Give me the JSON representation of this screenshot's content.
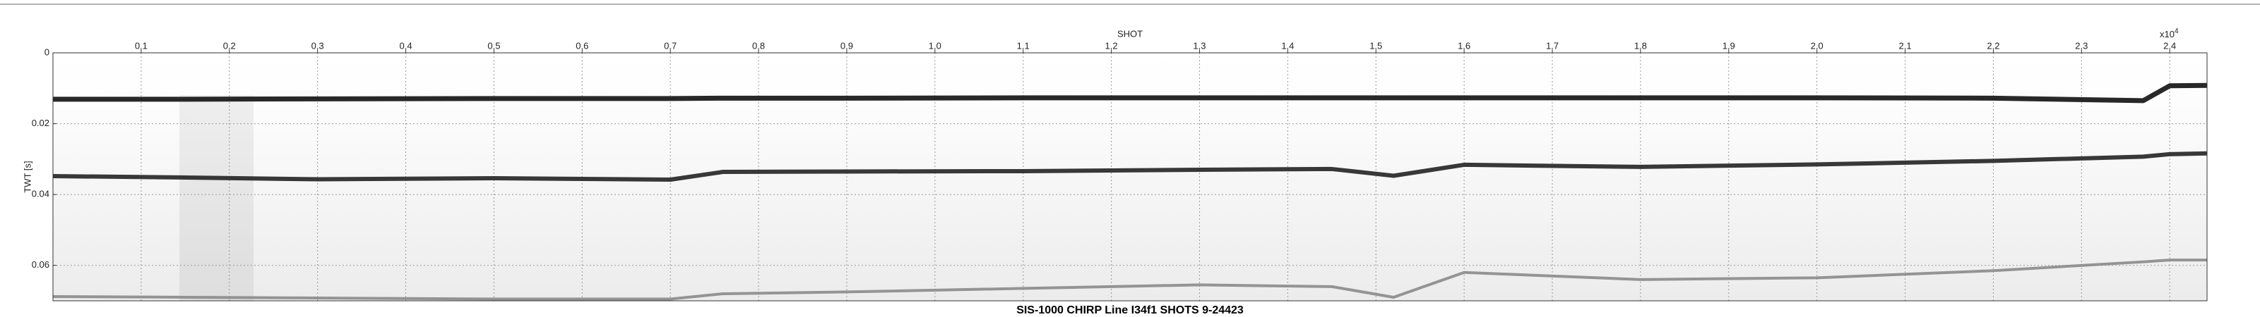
{
  "chart_data": {
    "type": "line",
    "title": "SIS-1000 CHIRP Line I34f1 SHOTS 9-24423",
    "x_label": "SHOT",
    "x_scale_base": "x10",
    "x_scale_exponent": "4",
    "y_label": "TWT [s]",
    "x": [
      0,
      0.15,
      0.3,
      0.5,
      0.7,
      0.76,
      0.9,
      1.1,
      1.3,
      1.45,
      1.52,
      1.6,
      1.8,
      2.0,
      2.2,
      2.37,
      2.4,
      2.4423
    ],
    "series": [
      {
        "color": "#111111",
        "values": [
          0.0131,
          0.0131,
          0.013,
          0.0129,
          0.0129,
          0.0128,
          0.0128,
          0.0127,
          0.0127,
          0.0127,
          0.0127,
          0.0127,
          0.0127,
          0.0127,
          0.0128,
          0.0135,
          0.0093,
          0.0092
        ]
      },
      {
        "color": "#222222",
        "values": [
          0.0348,
          0.0352,
          0.0357,
          0.0354,
          0.0358,
          0.0336,
          0.0335,
          0.0334,
          0.033,
          0.0328,
          0.0347,
          0.0316,
          0.0322,
          0.0315,
          0.0305,
          0.0293,
          0.0286,
          0.0284
        ]
      },
      {
        "color": "#8a8a8a",
        "values": [
          0.0688,
          0.069,
          0.0692,
          0.0695,
          0.0695,
          0.068,
          0.0675,
          0.0665,
          0.0655,
          0.066,
          0.069,
          0.062,
          0.064,
          0.0635,
          0.0615,
          0.059,
          0.0585,
          0.0585
        ]
      }
    ],
    "xlim": [
      0,
      2.4423
    ],
    "xticks": [
      0.1,
      0.2,
      0.3,
      0.4,
      0.5,
      0.6,
      0.7,
      0.8,
      0.9,
      {
        "value": 1,
        "label": "1.0"
      },
      1.1,
      1.2,
      1.3,
      1.4,
      1.5,
      1.6,
      1.7,
      1.8,
      1.9,
      {
        "value": 2,
        "label": "2.0"
      },
      2.1,
      2.2,
      2.3,
      2.4
    ],
    "ylim": [
      0,
      0.07
    ],
    "yticks": [
      0,
      0.02,
      0.04,
      0.06
    ],
    "y_inverted": true,
    "grid": true
  }
}
